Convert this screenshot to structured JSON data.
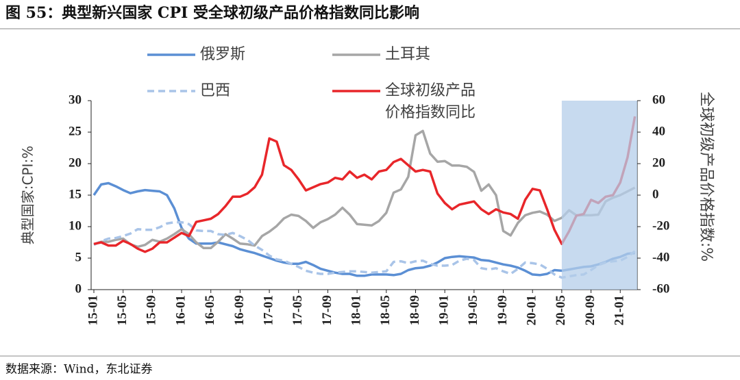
{
  "chart_data": {
    "type": "line",
    "title": "图 55：典型新兴国家 CPI 受全球初级产品价格指数同比影响",
    "source": "数据来源：Wind，东北证券",
    "ylabel": "典型国家:CPI:%",
    "y2label": "全球初级产品价格指数:%",
    "categories": [
      "15-01",
      null,
      null,
      null,
      "15-05",
      null,
      null,
      null,
      "15-09",
      null,
      null,
      null,
      "16-01",
      null,
      null,
      null,
      "16-05",
      null,
      null,
      null,
      "16-09",
      null,
      null,
      null,
      "17-01",
      null,
      null,
      null,
      "17-05",
      null,
      null,
      null,
      "17-09",
      null,
      null,
      null,
      "18-01",
      null,
      null,
      null,
      "18-05",
      null,
      null,
      null,
      "18-09",
      null,
      null,
      null,
      "19-01",
      null,
      null,
      null,
      "19-05",
      null,
      null,
      null,
      "19-09",
      null,
      null,
      null,
      "20-01",
      null,
      null,
      null,
      "20-05",
      null,
      null,
      null,
      "20-09",
      null,
      null,
      null,
      "21-01",
      null,
      null
    ],
    "highlight_start": "20-05",
    "highlight_color": "#b4cde9",
    "ylim": [
      0,
      30
    ],
    "yticks": [
      0,
      5,
      10,
      15,
      20,
      25,
      30
    ],
    "y2lim": [
      -60,
      60
    ],
    "y2ticks": [
      -60,
      -40,
      -20,
      0,
      20,
      40,
      60
    ],
    "grid": false,
    "series": [
      {
        "name": "俄罗斯",
        "color": "#5b8fd4",
        "line_style": "solid",
        "values": [
          15,
          16.7,
          16.9,
          16.4,
          15.8,
          15.3,
          15.6,
          15.8,
          15.7,
          15.6,
          15.0,
          12.9,
          9.8,
          8.1,
          7.3,
          7.3,
          7.3,
          7.5,
          7.2,
          6.9,
          6.4,
          6.1,
          5.8,
          5.4,
          5.0,
          4.6,
          4.3,
          4.1,
          4.1,
          4.4,
          3.9,
          3.3,
          3.0,
          2.7,
          2.5,
          2.5,
          2.2,
          2.2,
          2.4,
          2.4,
          2.4,
          2.3,
          2.5,
          3.1,
          3.4,
          3.5,
          3.8,
          4.3,
          5.0,
          5.2,
          5.3,
          5.2,
          5.1,
          4.7,
          4.6,
          4.3,
          4.0,
          3.8,
          3.5,
          3.0,
          2.4,
          2.3,
          2.5,
          3.1,
          3.0,
          3.2,
          3.4,
          3.6,
          3.7,
          4.0,
          4.4,
          4.9,
          5.2,
          5.7,
          5.8
        ]
      },
      {
        "name": "土耳其",
        "color": "#a6a6a6",
        "line_style": "solid",
        "values": [
          7.2,
          7.6,
          7.6,
          7.9,
          8.1,
          7.2,
          6.8,
          7.1,
          7.9,
          7.6,
          8.1,
          8.8,
          9.6,
          8.8,
          7.5,
          6.6,
          6.6,
          7.6,
          8.8,
          8.1,
          7.3,
          7.2,
          7.0,
          8.5,
          9.2,
          10.1,
          11.3,
          11.9,
          11.7,
          10.9,
          9.8,
          10.7,
          11.2,
          11.9,
          13.0,
          11.9,
          10.4,
          10.3,
          10.2,
          10.9,
          12.2,
          15.4,
          15.9,
          17.9,
          24.5,
          25.2,
          21.6,
          20.3,
          20.4,
          19.7,
          19.7,
          19.5,
          18.7,
          15.7,
          16.7,
          15.0,
          9.3,
          8.6,
          10.6,
          11.8,
          12.2,
          12.4,
          11.9,
          10.9,
          11.4,
          12.6,
          11.8,
          11.8,
          11.8,
          11.9,
          14.0,
          14.6,
          15.0,
          15.6,
          16.2
        ]
      },
      {
        "name": "巴西",
        "color": "#a9c4e8",
        "line_style": "dashed",
        "values": [
          7.1,
          7.7,
          8.1,
          8.2,
          8.5,
          8.9,
          9.6,
          9.5,
          9.5,
          9.9,
          10.5,
          10.7,
          10.7,
          10.4,
          9.4,
          9.3,
          9.3,
          8.8,
          8.7,
          9.0,
          8.5,
          7.9,
          7.0,
          6.3,
          5.4,
          4.8,
          4.6,
          4.1,
          3.6,
          3.0,
          2.7,
          2.5,
          2.5,
          2.7,
          2.8,
          2.9,
          2.9,
          2.8,
          2.7,
          2.8,
          2.9,
          4.4,
          4.5,
          4.2,
          4.5,
          4.6,
          4.1,
          3.8,
          3.8,
          3.9,
          4.6,
          4.9,
          4.7,
          3.4,
          3.2,
          3.4,
          2.9,
          2.5,
          3.3,
          4.3,
          4.2,
          4.0,
          3.3,
          2.4,
          1.9,
          2.1,
          2.3,
          2.4,
          3.1,
          3.9,
          4.3,
          4.5,
          4.6,
          5.2,
          6.1
        ]
      },
      {
        "name": "全球初级产品\n价格指数同比",
        "color": "#e8262a",
        "line_style": "solid",
        "axis": "y2",
        "values": [
          -31,
          -30,
          -32,
          -32,
          -29,
          -31,
          -34,
          -36,
          -34,
          -30,
          -30,
          -27,
          -24,
          -26,
          -17,
          -16,
          -15,
          -12,
          -7,
          -1,
          -1,
          1,
          5,
          13,
          36,
          34,
          19,
          16,
          10,
          3,
          5,
          7,
          8,
          11,
          10,
          15,
          11,
          13,
          10,
          15,
          16,
          21,
          23,
          19,
          15,
          16,
          15,
          1,
          -5,
          -9,
          -6,
          -5,
          -4,
          -9,
          -12,
          -9,
          -11,
          -12,
          -15,
          -3,
          4,
          3,
          -9,
          -22,
          -31,
          -23,
          -13,
          -12,
          -3,
          -5,
          -1,
          0,
          8,
          24,
          50
        ]
      }
    ]
  }
}
